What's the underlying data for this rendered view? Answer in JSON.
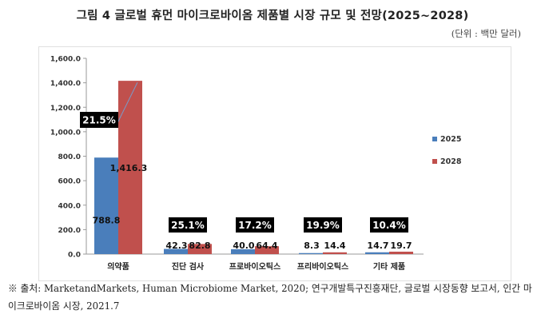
{
  "title": "그림 4 글로벌 휴먼 마이크로바이옴 제품별 시장 규모 및 전망(2025~2028)",
  "unit_label": "(단위 : 백만 달러)",
  "source_note": "※ 출처: MarketandMarkets, Human Microbiome Market, 2020; 연구개발특구진흥재단, 글로벌 시장동향 보고서, 인간 마이크로바이옴 시장, 2021.7",
  "chart_data": {
    "type": "bar",
    "categories": [
      "의약품",
      "진단 검사",
      "프로바이오틱스",
      "프리바이오틱스",
      "기타 제품"
    ],
    "series": [
      {
        "name": "2025",
        "values": [
          788.8,
          42.3,
          40.0,
          8.3,
          14.7
        ],
        "color": "#4a7ebb"
      },
      {
        "name": "2028",
        "values": [
          1416.3,
          82.8,
          64.4,
          14.4,
          19.7
        ],
        "color": "#c0504d"
      }
    ],
    "value_labels": [
      [
        "788.8",
        "1,416.3"
      ],
      [
        "42.3",
        "82.8"
      ],
      [
        "40.0",
        "64.4"
      ],
      [
        "8.3",
        "14.4"
      ],
      [
        "14.7",
        "19.7"
      ]
    ],
    "growth_labels": [
      "21.5%",
      "25.1%",
      "17.2%",
      "19.9%",
      "10.4%"
    ],
    "y_ticks": [
      "0.0",
      "200.0",
      "400.0",
      "600.0",
      "800.0",
      "1,000.0",
      "1,200.0",
      "1,400.0",
      "1,600.0"
    ],
    "ylim": [
      0,
      1600
    ],
    "legend_position": "right",
    "grid": false
  }
}
